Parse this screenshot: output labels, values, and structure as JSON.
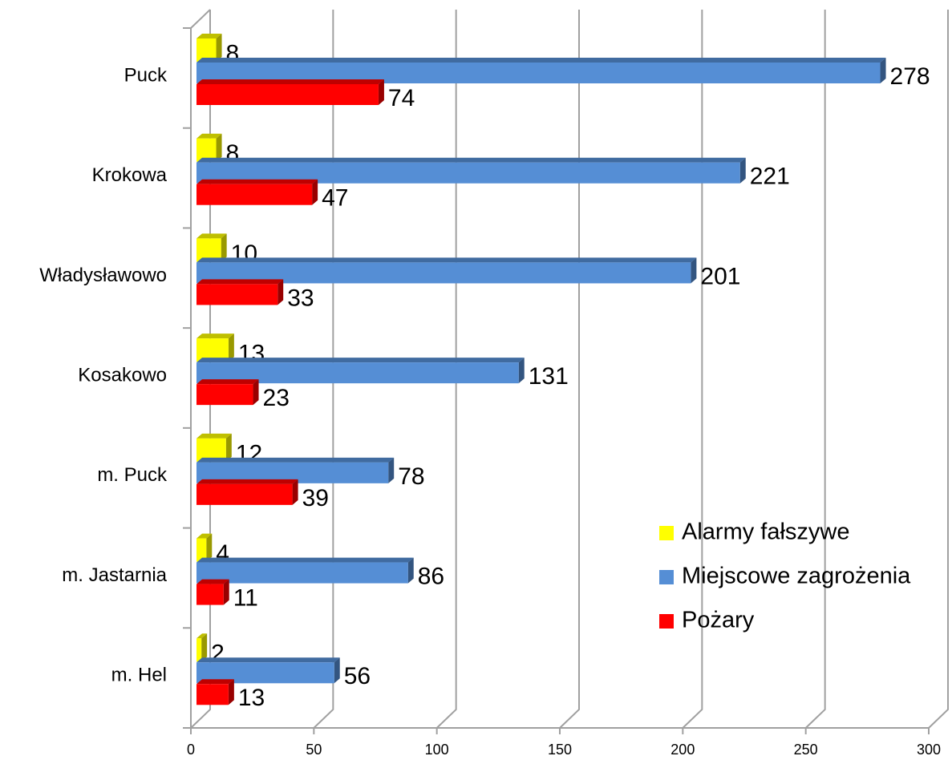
{
  "chart_data": {
    "type": "bar",
    "orientation": "horizontal",
    "three_d": true,
    "categories": [
      "Puck",
      "Krokowa",
      "Władysławowo",
      "Kosakowo",
      "m. Puck",
      "m. Jastarnia",
      "m. Hel"
    ],
    "series": [
      {
        "name": "Alarmy fałszywe",
        "color": "#ffff00",
        "values": [
          8,
          8,
          10,
          13,
          12,
          4,
          2
        ]
      },
      {
        "name": "Miejscowe zagrożenia",
        "color": "#558ed5",
        "values": [
          278,
          221,
          201,
          131,
          78,
          86,
          56
        ]
      },
      {
        "name": "Pożary",
        "color": "#ff0000",
        "values": [
          74,
          47,
          33,
          23,
          39,
          11,
          13
        ]
      }
    ],
    "xlim": [
      0,
      300
    ],
    "xticks": [
      0,
      50,
      100,
      150,
      200,
      250,
      300
    ],
    "grid": true,
    "legend": "lower right"
  }
}
